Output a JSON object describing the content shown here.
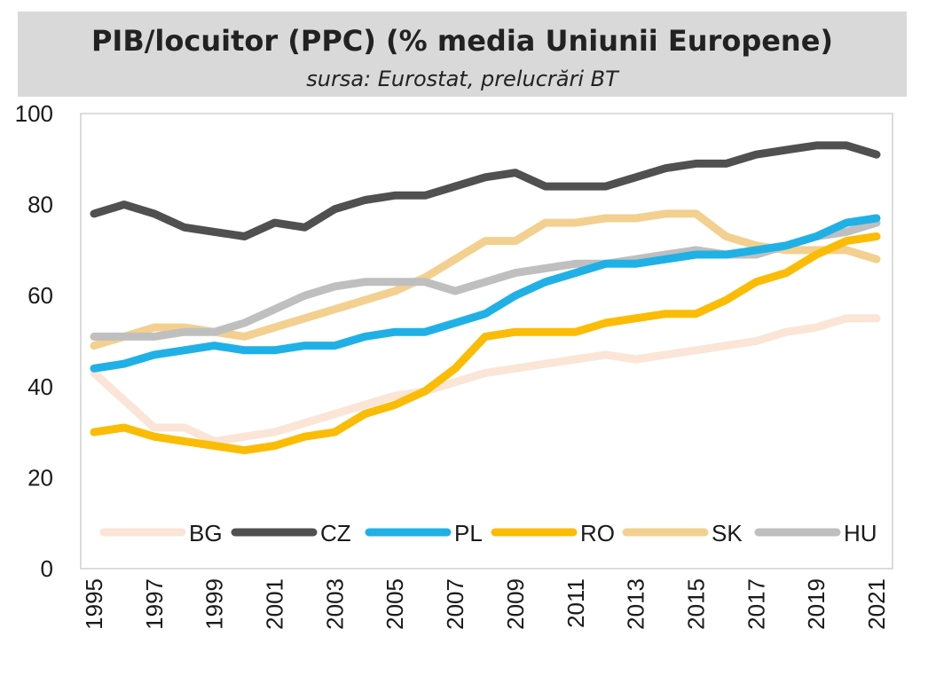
{
  "chart_data": {
    "type": "line",
    "title": "PIB/locuitor (PPC) (% media Uniunii Europene)",
    "subtitle": "sursa: Eurostat, prelucrări BT",
    "xlabel": "",
    "ylabel": "",
    "ylim": [
      0,
      100
    ],
    "yticks": [
      0,
      20,
      40,
      60,
      80,
      100
    ],
    "x": [
      1995,
      1996,
      1997,
      1998,
      1999,
      2000,
      2001,
      2002,
      2003,
      2004,
      2005,
      2006,
      2007,
      2008,
      2009,
      2010,
      2011,
      2012,
      2013,
      2014,
      2015,
      2016,
      2017,
      2018,
      2019,
      2020,
      2021
    ],
    "xticks": [
      "1995",
      "1997",
      "1999",
      "2001",
      "2003",
      "2005",
      "2007",
      "2009",
      "2011",
      "2013",
      "2015",
      "2017",
      "2019",
      "2021"
    ],
    "grid": false,
    "legend_position": "bottom",
    "series": [
      {
        "name": "BG",
        "color": "#fbe5d6",
        "values": [
          43,
          37,
          31,
          31,
          28,
          29,
          30,
          32,
          34,
          36,
          38,
          39,
          41,
          43,
          44,
          45,
          46,
          47,
          46,
          47,
          48,
          49,
          50,
          52,
          53,
          55,
          55
        ]
      },
      {
        "name": "CZ",
        "color": "#505050",
        "values": [
          78,
          80,
          78,
          75,
          74,
          73,
          76,
          75,
          79,
          81,
          82,
          82,
          84,
          86,
          87,
          84,
          84,
          84,
          86,
          88,
          89,
          89,
          91,
          92,
          93,
          93,
          91
        ]
      },
      {
        "name": "PL",
        "color": "#1fb1e6",
        "values": [
          44,
          45,
          47,
          48,
          49,
          48,
          48,
          49,
          49,
          51,
          52,
          52,
          54,
          56,
          60,
          63,
          65,
          67,
          67,
          68,
          69,
          69,
          70,
          71,
          73,
          76,
          77
        ]
      },
      {
        "name": "RO",
        "color": "#fbbc05",
        "values": [
          30,
          31,
          29,
          28,
          27,
          26,
          27,
          29,
          30,
          34,
          36,
          39,
          44,
          51,
          52,
          52,
          52,
          54,
          55,
          56,
          56,
          59,
          63,
          65,
          69,
          72,
          73
        ]
      },
      {
        "name": "SK",
        "color": "#f3d08f",
        "values": [
          49,
          51,
          53,
          53,
          52,
          51,
          53,
          55,
          57,
          59,
          61,
          64,
          68,
          72,
          72,
          76,
          76,
          77,
          77,
          78,
          78,
          73,
          71,
          70,
          70,
          70,
          68
        ]
      },
      {
        "name": "HU",
        "color": "#bfbfbf",
        "values": [
          51,
          51,
          51,
          52,
          52,
          54,
          57,
          60,
          62,
          63,
          63,
          63,
          61,
          63,
          65,
          66,
          67,
          67,
          68,
          69,
          70,
          69,
          69,
          71,
          73,
          74,
          76
        ]
      }
    ]
  }
}
